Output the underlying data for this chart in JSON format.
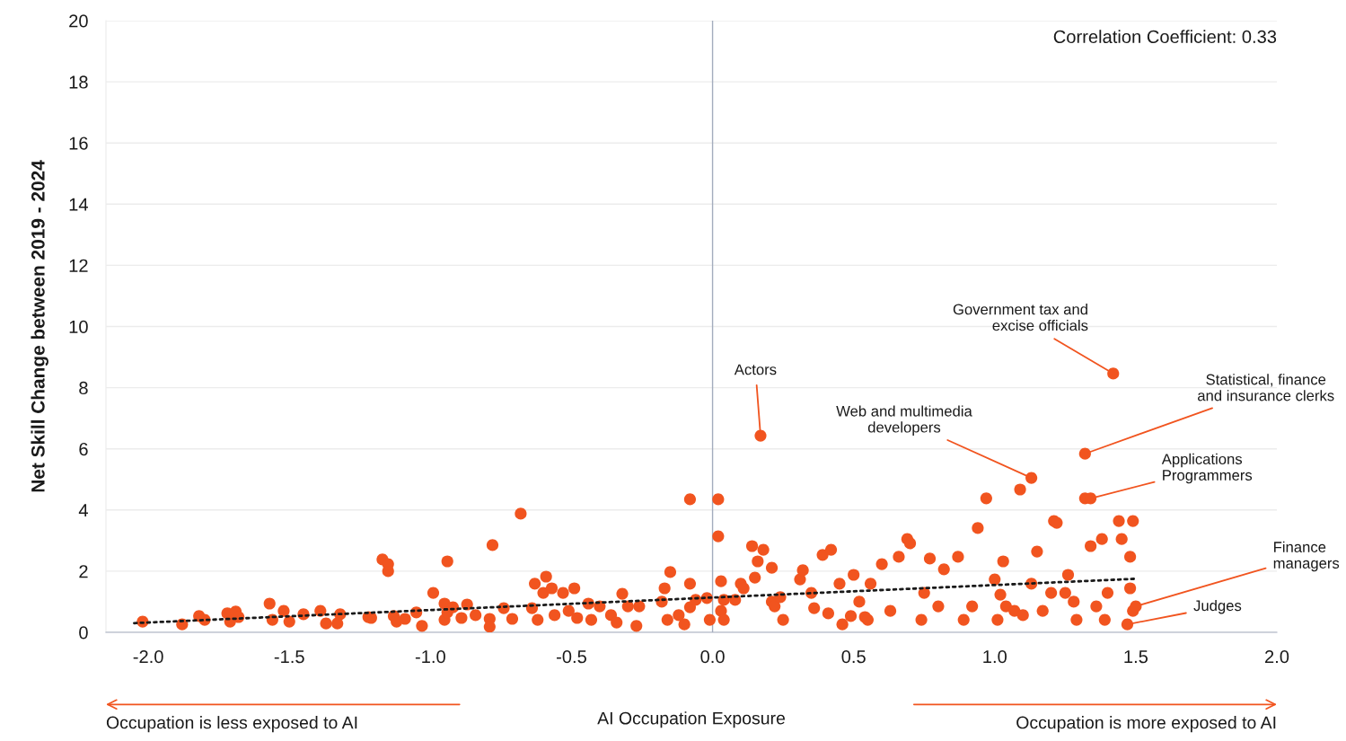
{
  "chart_data": {
    "type": "scatter",
    "xlabel": "AI Occupation Exposure",
    "ylabel": "Net Skill Change between 2019 - 2024",
    "xlim": [
      -2.15,
      2.0
    ],
    "xticks": [
      {
        "value": -2.0,
        "label": "-2.0"
      },
      {
        "value": -1.5,
        "label": "-1.5"
      },
      {
        "value": -1.0,
        "label": "-1.0"
      },
      {
        "value": -0.5,
        "label": "-0.5"
      },
      {
        "value": 0.0,
        "label": "0.0"
      },
      {
        "value": 0.5,
        "label": "0.5"
      },
      {
        "value": 1.0,
        "label": "1.0"
      },
      {
        "value": 1.5,
        "label": "1.5"
      },
      {
        "value": 2.0,
        "label": "2.0"
      }
    ],
    "ylim": [
      0,
      20
    ],
    "yticks": [
      0,
      2,
      4,
      6,
      8,
      10,
      12,
      14,
      16,
      18,
      20
    ],
    "grid": "y",
    "marker": "circle",
    "ref_lines": [
      {
        "axis": "x",
        "value": 0,
        "label": null,
        "color": "#a3acbd"
      }
    ],
    "series": [
      {
        "color": "#f1541f",
        "x": [
          -2.02,
          -1.88,
          -1.82,
          -1.8,
          -1.72,
          -1.69,
          -1.68,
          -1.71,
          -1.57,
          -1.56,
          -1.52,
          -1.5,
          -1.45,
          -1.39,
          -1.37,
          -1.33,
          -1.32,
          -1.22,
          -1.21,
          -1.17,
          -1.15,
          -1.15,
          -1.13,
          -1.12,
          -1.09,
          -1.05,
          -1.03,
          -0.99,
          -0.94,
          -0.95,
          -0.95,
          -0.94,
          -0.92,
          -0.89,
          -0.87,
          -0.84,
          -0.79,
          -0.78,
          -0.79,
          -0.74,
          -0.71,
          -0.68,
          -0.64,
          -0.63,
          -0.62,
          -0.6,
          -0.59,
          -0.57,
          -0.56,
          -0.53,
          -0.51,
          -0.49,
          -0.48,
          -0.44,
          -0.43,
          -0.4,
          -0.36,
          -0.34,
          -0.32,
          -0.3,
          -0.27,
          -0.26,
          -0.18,
          -0.17,
          -0.16,
          -0.15,
          -0.12,
          -0.1,
          -0.08,
          -0.08,
          -0.08,
          -0.06,
          -0.02,
          -0.01,
          0.02,
          0.02,
          0.03,
          0.03,
          0.04,
          0.04,
          0.08,
          0.1,
          0.11,
          0.14,
          0.15,
          0.17,
          0.16,
          0.18,
          0.21,
          0.21,
          0.22,
          0.24,
          0.25,
          0.31,
          0.32,
          0.35,
          0.36,
          0.39,
          0.41,
          0.42,
          0.45,
          0.46,
          0.49,
          0.5,
          0.52,
          0.54,
          0.55,
          0.56,
          0.6,
          0.63,
          0.66,
          0.69,
          0.7,
          0.74,
          0.75,
          0.77,
          0.8,
          0.82,
          0.87,
          0.89,
          0.92,
          0.94,
          0.97,
          1.0,
          1.01,
          1.02,
          1.03,
          1.04,
          1.07,
          1.09,
          1.1,
          1.13,
          1.13,
          1.15,
          1.17,
          1.2,
          1.21,
          1.22,
          1.25,
          1.26,
          1.28,
          1.29,
          1.32,
          1.32,
          1.34,
          1.34,
          1.36,
          1.38,
          1.39,
          1.4,
          1.42,
          1.44,
          1.45,
          1.48,
          1.48,
          1.49,
          1.49,
          1.47,
          1.5
        ],
        "values": [
          0.35,
          0.26,
          0.53,
          0.41,
          0.62,
          0.68,
          0.5,
          0.35,
          0.94,
          0.41,
          0.7,
          0.35,
          0.59,
          0.7,
          0.29,
          0.29,
          0.59,
          0.5,
          0.47,
          2.38,
          2.0,
          2.23,
          0.53,
          0.35,
          0.44,
          0.65,
          0.21,
          1.29,
          2.32,
          0.94,
          0.41,
          0.65,
          0.82,
          0.47,
          0.91,
          0.56,
          0.44,
          2.85,
          0.18,
          0.79,
          0.44,
          3.88,
          0.79,
          1.59,
          0.41,
          1.29,
          1.82,
          1.44,
          0.56,
          1.29,
          0.7,
          1.44,
          0.47,
          0.94,
          0.41,
          0.85,
          0.56,
          0.32,
          1.26,
          0.85,
          0.21,
          0.85,
          1.0,
          1.44,
          0.41,
          1.97,
          0.56,
          0.26,
          4.35,
          1.59,
          0.82,
          1.06,
          1.12,
          0.41,
          4.35,
          3.14,
          1.67,
          0.7,
          0.41,
          1.06,
          1.06,
          1.59,
          1.44,
          2.82,
          1.79,
          6.43,
          2.32,
          2.7,
          2.11,
          1.0,
          0.85,
          1.15,
          0.41,
          1.73,
          2.03,
          1.29,
          0.79,
          2.53,
          0.62,
          2.7,
          1.59,
          0.26,
          0.53,
          1.88,
          1.0,
          0.5,
          0.41,
          1.59,
          2.23,
          0.7,
          2.47,
          3.05,
          2.91,
          0.41,
          1.29,
          2.41,
          0.85,
          2.06,
          2.47,
          0.41,
          0.85,
          3.41,
          4.38,
          1.73,
          0.41,
          1.23,
          2.32,
          0.85,
          0.7,
          4.67,
          0.56,
          5.05,
          1.59,
          2.64,
          0.7,
          1.29,
          3.64,
          3.58,
          1.29,
          1.88,
          1.0,
          0.41,
          5.84,
          4.38,
          4.38,
          2.82,
          0.85,
          3.05,
          0.41,
          1.29,
          8.46,
          3.64,
          3.05,
          2.47,
          1.44,
          0.7,
          3.64,
          0.26,
          0.85
        ]
      },
      {
        "type": "line",
        "color": "#1a1a1a",
        "line_style": "dotted",
        "marker": "none",
        "x": [
          -2.05,
          1.5
        ],
        "values": [
          0.3,
          1.75
        ]
      }
    ],
    "annotations": [
      "Correlation Coefficient: 0.33",
      {
        "text": "Actors",
        "x": 0.17,
        "y": 6.43
      },
      {
        "text": "Government tax and\nexcise officials",
        "x": 1.42,
        "y": 8.46
      },
      {
        "text": "Web and multimedia\ndevelopers",
        "x": 1.13,
        "y": 5.05
      },
      {
        "text": "Statistical, finance\nand insurance clerks",
        "x": 1.32,
        "y": 5.84
      },
      {
        "text": "Applications\nProgrammers",
        "x": 1.34,
        "y": 4.38
      },
      {
        "text": "Finance\nmanagers",
        "x": 1.5,
        "y": 0.85
      },
      {
        "text": "Judges",
        "x": 1.47,
        "y": 0.26
      },
      "Occupation is less exposed to AI",
      "Occupation is more exposed to AI"
    ]
  }
}
